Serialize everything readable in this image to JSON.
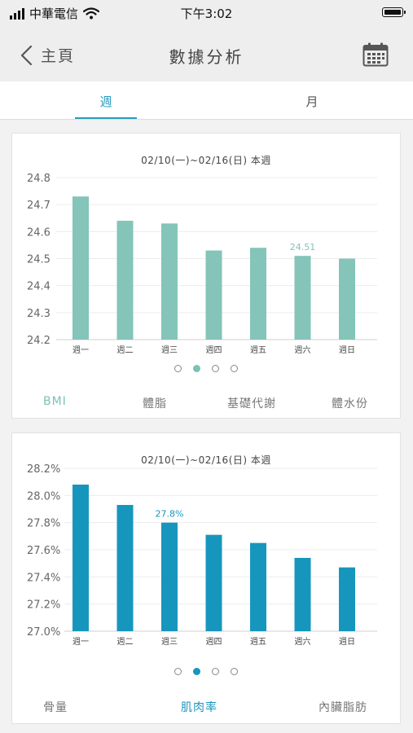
{
  "status_bar": {
    "carrier": "中華電信",
    "time": "下午3:02"
  },
  "nav": {
    "back_label": "主頁",
    "title": "數據分析"
  },
  "tabs": [
    {
      "label": "週",
      "selected": true
    },
    {
      "label": "月",
      "selected": false
    }
  ],
  "colors": {
    "teal": "#84c4b9",
    "blue": "#1796bd",
    "accent": "#2a9cc0"
  },
  "chart_data": [
    {
      "type": "bar",
      "title": "02/10(一)~02/16(日) 本週",
      "categories": [
        "週一",
        "週二",
        "週三",
        "週四",
        "週五",
        "週六",
        "週日"
      ],
      "values": [
        24.73,
        24.64,
        24.63,
        24.53,
        24.54,
        24.51,
        24.5
      ],
      "ylim": [
        24.2,
        24.8
      ],
      "yticks": [
        "24.8",
        "24.7",
        "24.6",
        "24.5",
        "24.4",
        "24.3",
        "24.2"
      ],
      "highlight_label": "24.51",
      "highlight_index": 5,
      "color": "#84c4b9",
      "grid": true
    },
    {
      "type": "bar",
      "title": "02/10(一)~02/16(日) 本週",
      "categories": [
        "週一",
        "週二",
        "週三",
        "週四",
        "週五",
        "週六",
        "週日"
      ],
      "values": [
        28.08,
        27.93,
        27.8,
        27.71,
        27.65,
        27.54,
        27.47
      ],
      "ylim": [
        27.0,
        28.2
      ],
      "yticks": [
        "28.2%",
        "28.0%",
        "27.8%",
        "27.6%",
        "27.4%",
        "27.2%",
        "27.0%"
      ],
      "highlight_label": "27.8%",
      "highlight_index": 2,
      "color": "#1796bd",
      "grid": true
    }
  ],
  "card1": {
    "page_count": 4,
    "active_page": 1,
    "metrics": [
      "BMI",
      "體脂",
      "基礎代謝",
      "體水份"
    ],
    "active_metric": 0
  },
  "card2": {
    "page_count": 4,
    "active_page": 1,
    "metrics": [
      "骨量",
      "肌肉率",
      "內臟脂肪"
    ],
    "active_metric": 1
  }
}
